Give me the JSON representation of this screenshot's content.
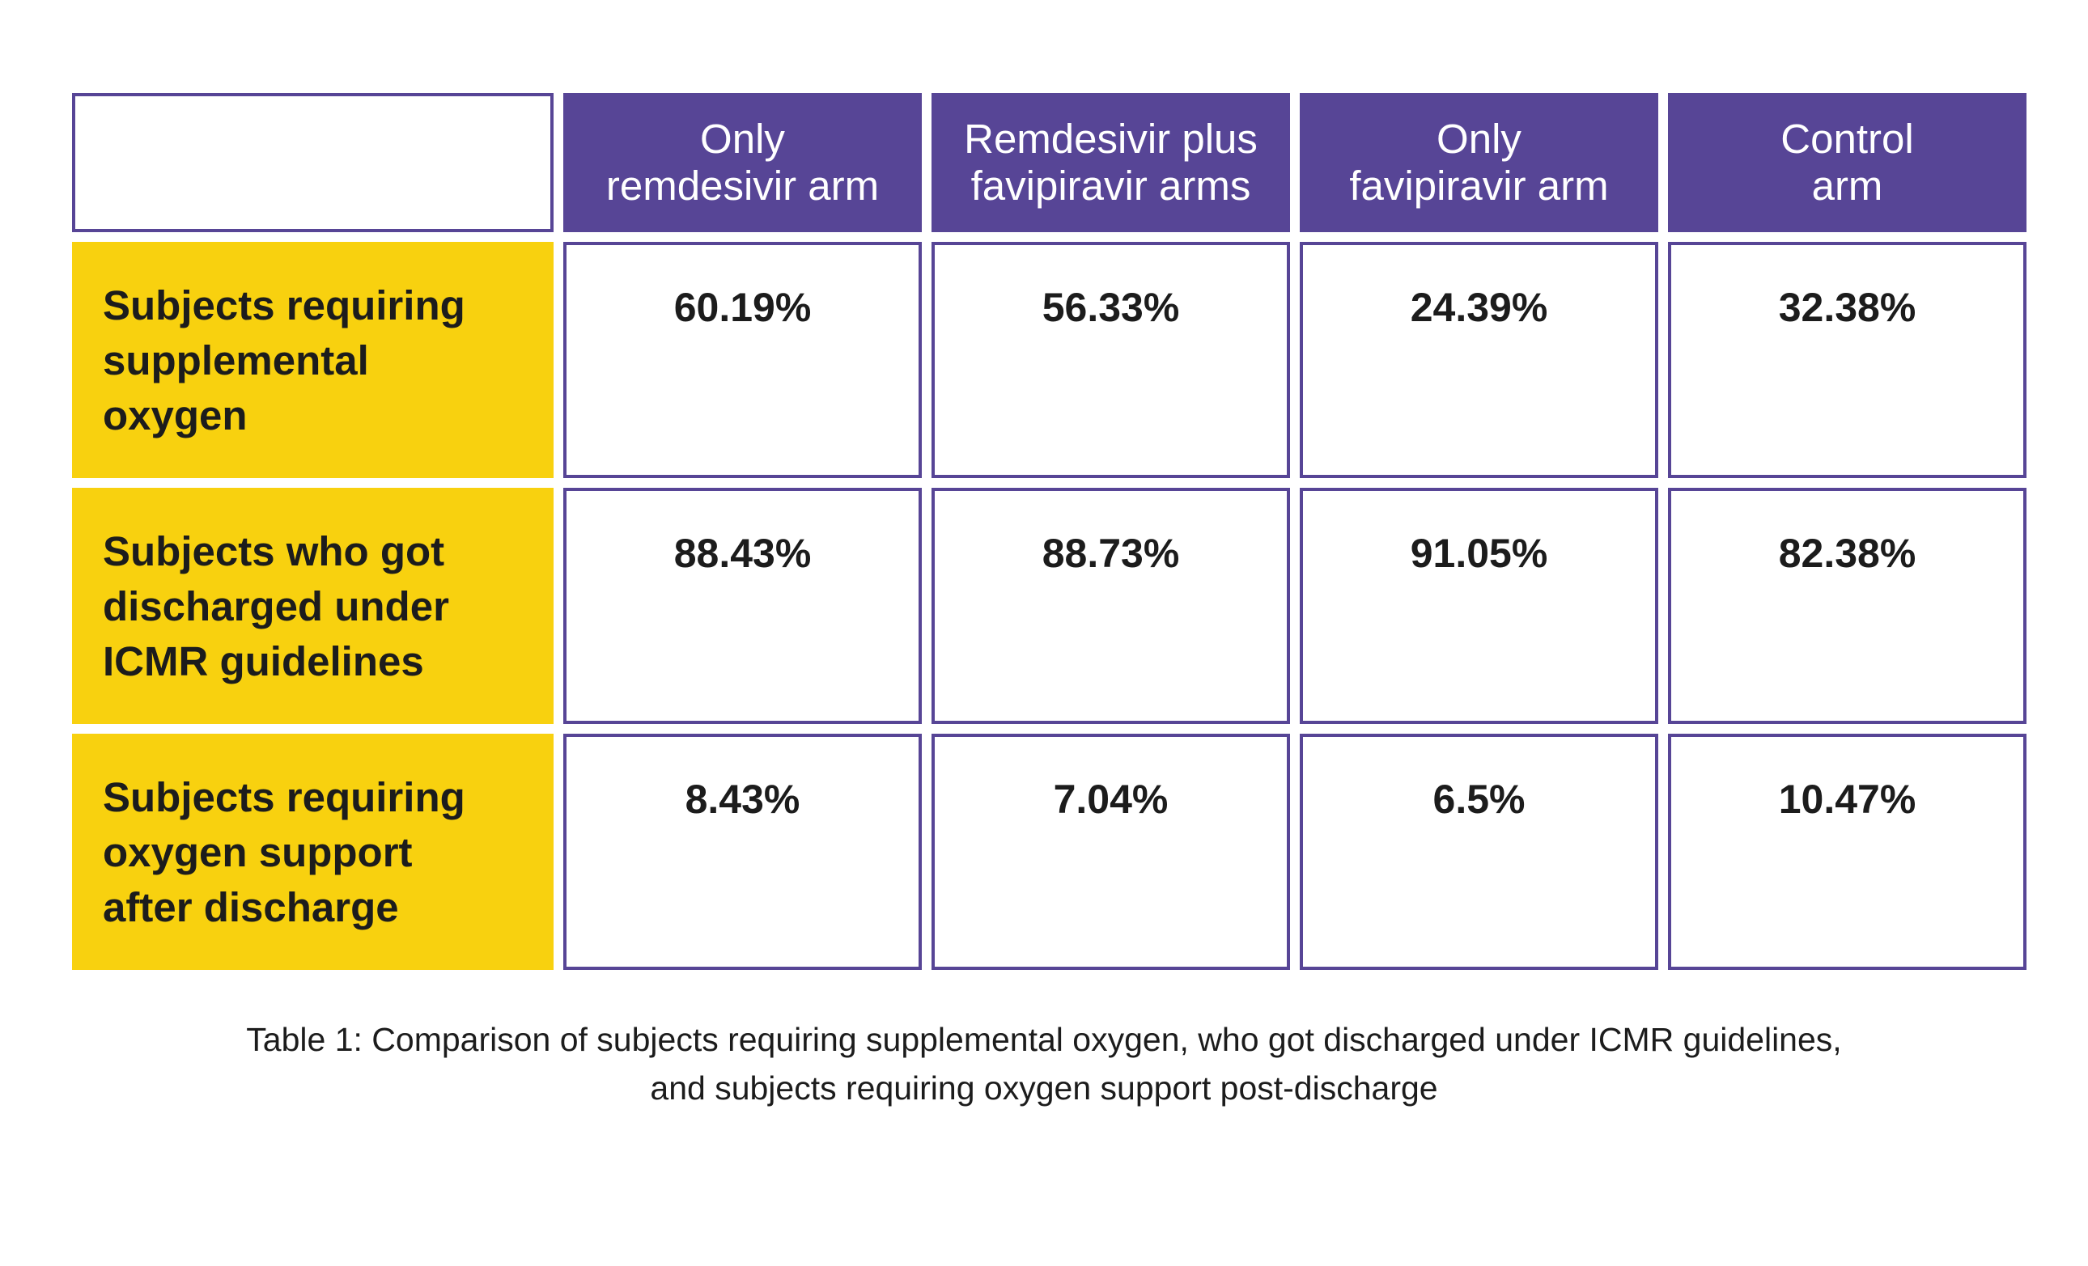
{
  "table": {
    "columns": [
      "Only\nremdesivir arm",
      "Remdesivir plus\nfavipiravir arms",
      "Only\nfavipiravir arm",
      "Control\narm"
    ],
    "rows": [
      {
        "label": "Subjects requiring\nsupplemental\noxygen",
        "values": [
          "60.19%",
          "56.33%",
          "24.39%",
          "32.38%"
        ]
      },
      {
        "label": "Subjects who got\ndischarged under\nICMR guidelines",
        "values": [
          "88.43%",
          "88.73%",
          "91.05%",
          "82.38%"
        ]
      },
      {
        "label": "Subjects requiring\noxygen support\nafter discharge",
        "values": [
          "8.43%",
          "7.04%",
          "6.5%",
          "10.47%"
        ]
      }
    ]
  },
  "caption": {
    "line1": "Table 1: Comparison of subjects requiring supplemental oxygen, who got discharged under ICMR guidelines,",
    "line2": "and subjects requiring oxygen support post-discharge"
  },
  "colors": {
    "header_bg": "#574596",
    "row_label_bg": "#f8d10f",
    "border": "#574596"
  }
}
